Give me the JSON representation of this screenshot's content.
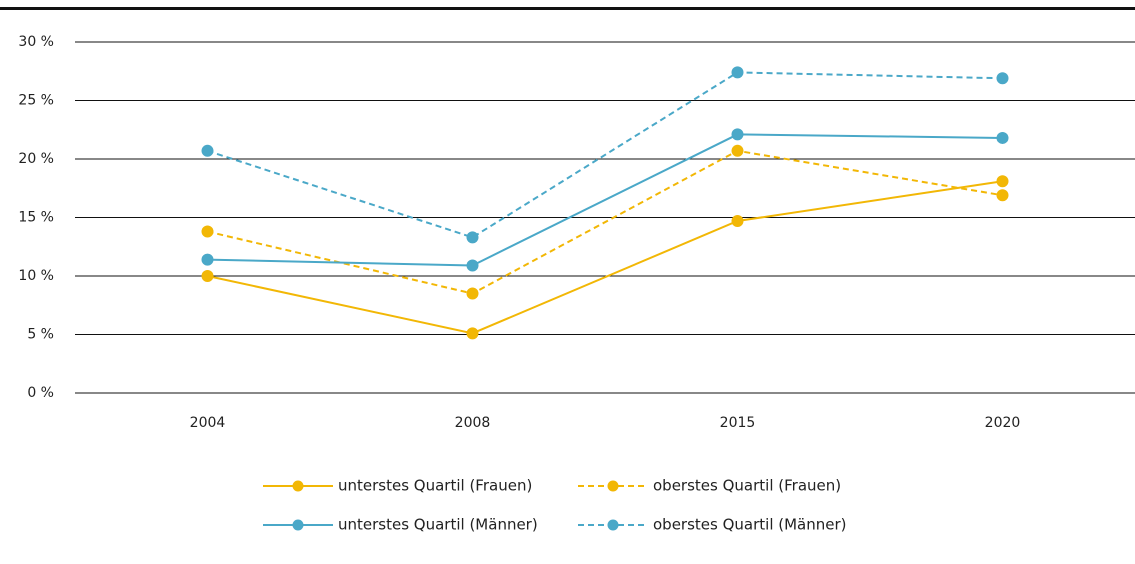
{
  "chart_data": {
    "type": "line",
    "categories": [
      "2004",
      "2008",
      "2015",
      "2020"
    ],
    "series": [
      {
        "name": "unterstes Quartil (Frauen)",
        "color": "#f2b705",
        "dashed": false,
        "values": [
          10.0,
          5.1,
          14.7,
          18.1
        ]
      },
      {
        "name": "oberstes Quartil (Frauen)",
        "color": "#f2b705",
        "dashed": true,
        "values": [
          13.8,
          8.5,
          20.7,
          16.9
        ]
      },
      {
        "name": "unterstes Quartil (Männer)",
        "color": "#4aa8c8",
        "dashed": false,
        "values": [
          11.4,
          10.9,
          22.1,
          21.8
        ]
      },
      {
        "name": "oberstes Quartil (Männer)",
        "color": "#4aa8c8",
        "dashed": true,
        "values": [
          20.7,
          13.3,
          27.4,
          26.9
        ]
      }
    ],
    "ylim": [
      0,
      30
    ],
    "yticks": [
      {
        "value": 0,
        "label": "0 %"
      },
      {
        "value": 5,
        "label": "5 %"
      },
      {
        "value": 10,
        "label": "10 %"
      },
      {
        "value": 15,
        "label": "15 %"
      },
      {
        "value": 20,
        "label": "20 %"
      },
      {
        "value": 25,
        "label": "25 %"
      },
      {
        "value": 30,
        "label": "30 %"
      }
    ],
    "grid": true
  }
}
